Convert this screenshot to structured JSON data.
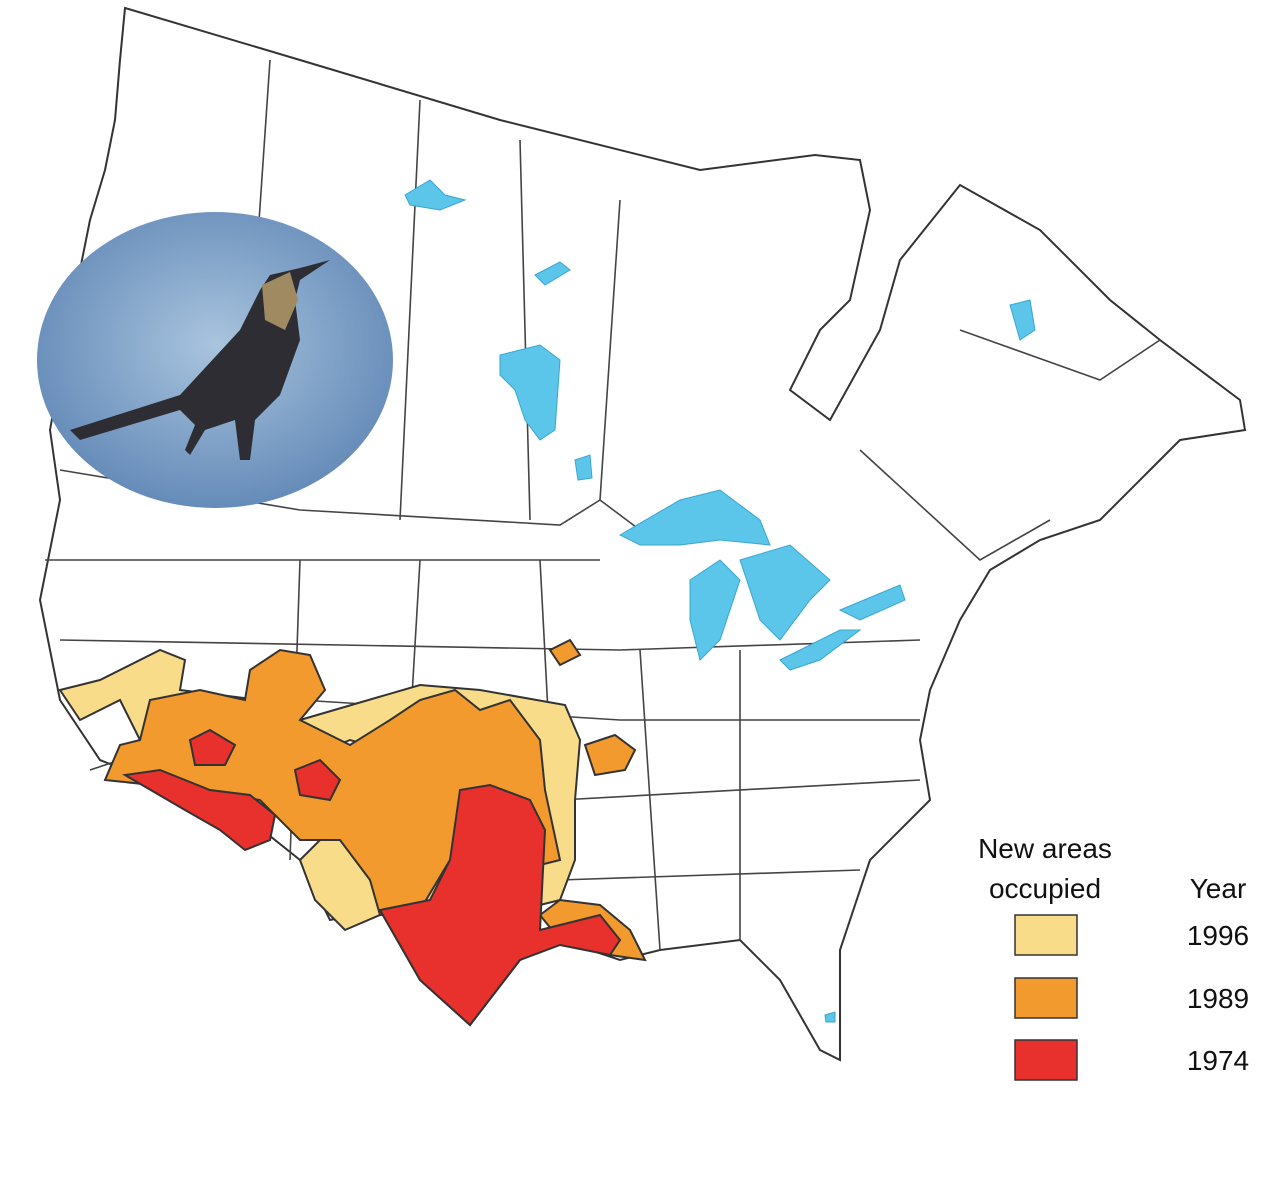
{
  "legend": {
    "title": "New areas occupied",
    "year_heading": "Year",
    "items": [
      {
        "year": "1996",
        "color": "#f9dc8a"
      },
      {
        "year": "1989",
        "color": "#f39a2e"
      },
      {
        "year": "1974",
        "color": "#e8302c"
      }
    ]
  }
}
